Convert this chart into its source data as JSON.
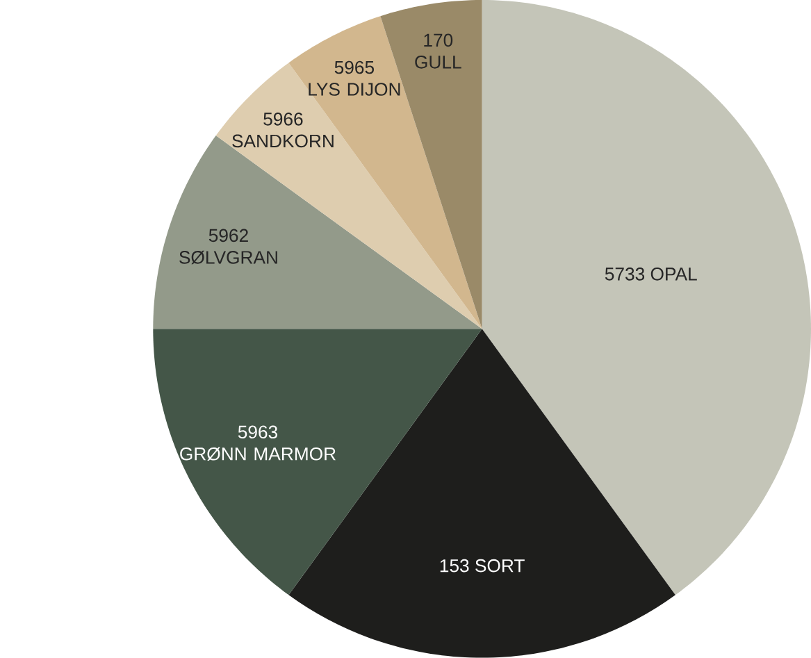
{
  "chart_data": {
    "type": "pie",
    "categories": [
      "5733 OPAL",
      "153 SORT",
      "5963 GRØNN MARMOR",
      "5962 SØLVGRAN",
      "5966 SANDKORN",
      "5965 LYS DIJON",
      "170 GULL"
    ],
    "values": [
      40,
      20,
      15,
      10,
      5,
      5,
      5
    ],
    "colors": [
      "#c4c5b8",
      "#1e1e1c",
      "#445648",
      "#939a8a",
      "#decdaf",
      "#d2b78e",
      "#9a8a68"
    ]
  }
}
